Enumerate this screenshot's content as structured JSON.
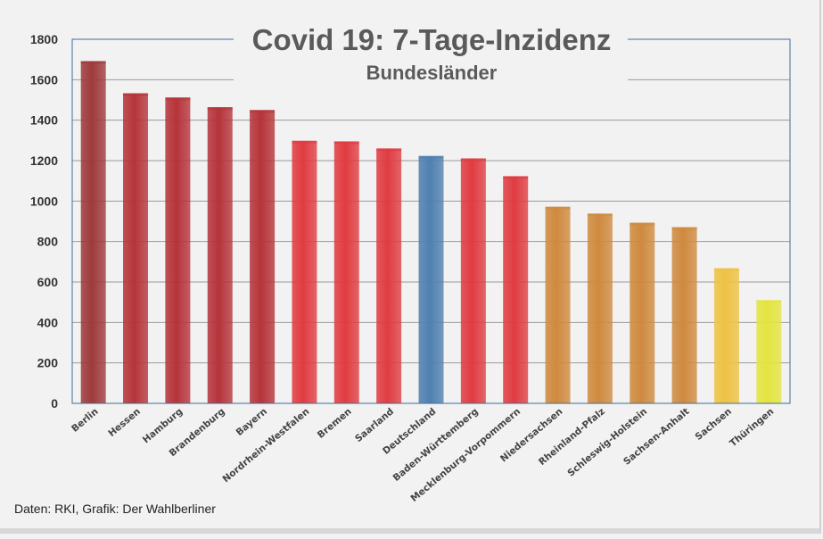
{
  "chart_data": {
    "type": "bar",
    "title": "Covid 19: 7-Tage-Inzidenz",
    "subtitle": "Bundesländer",
    "xlabel": "",
    "ylabel": "",
    "ylim": [
      0,
      1800
    ],
    "yticks": [
      0,
      200,
      400,
      600,
      800,
      1000,
      1200,
      1400,
      1600,
      1800
    ],
    "grid": true,
    "categories": [
      "Berlin",
      "Hessen",
      "Hamburg",
      "Brandenburg",
      "Bayern",
      "Nordrhein-Westfalen",
      "Bremen",
      "Saarland",
      "Deutschland",
      "Baden-Württemberg",
      "Mecklenburg-Vorpommern",
      "Niedersachsen",
      "Rheinland-Pfalz",
      "Schleswig-Holstein",
      "Sachsen-Anhalt",
      "Sachsen",
      "Thüringen"
    ],
    "values": [
      1692,
      1533,
      1512,
      1464,
      1450,
      1298,
      1295,
      1260,
      1223,
      1211,
      1123,
      972,
      938,
      893,
      871,
      668,
      510
    ],
    "colors": [
      "#9e3a3c",
      "#b5343a",
      "#b5343a",
      "#b5343a",
      "#b5343a",
      "#e03c41",
      "#e03c41",
      "#e03c41",
      "#5080b0",
      "#e03c41",
      "#e03c41",
      "#cf8a3e",
      "#cf8a3e",
      "#cf8a3e",
      "#cf8a3e",
      "#eec244",
      "#e4e440"
    ]
  },
  "footer": {
    "source": "Daten: RKI, Grafik: Der Wahlberliner"
  }
}
